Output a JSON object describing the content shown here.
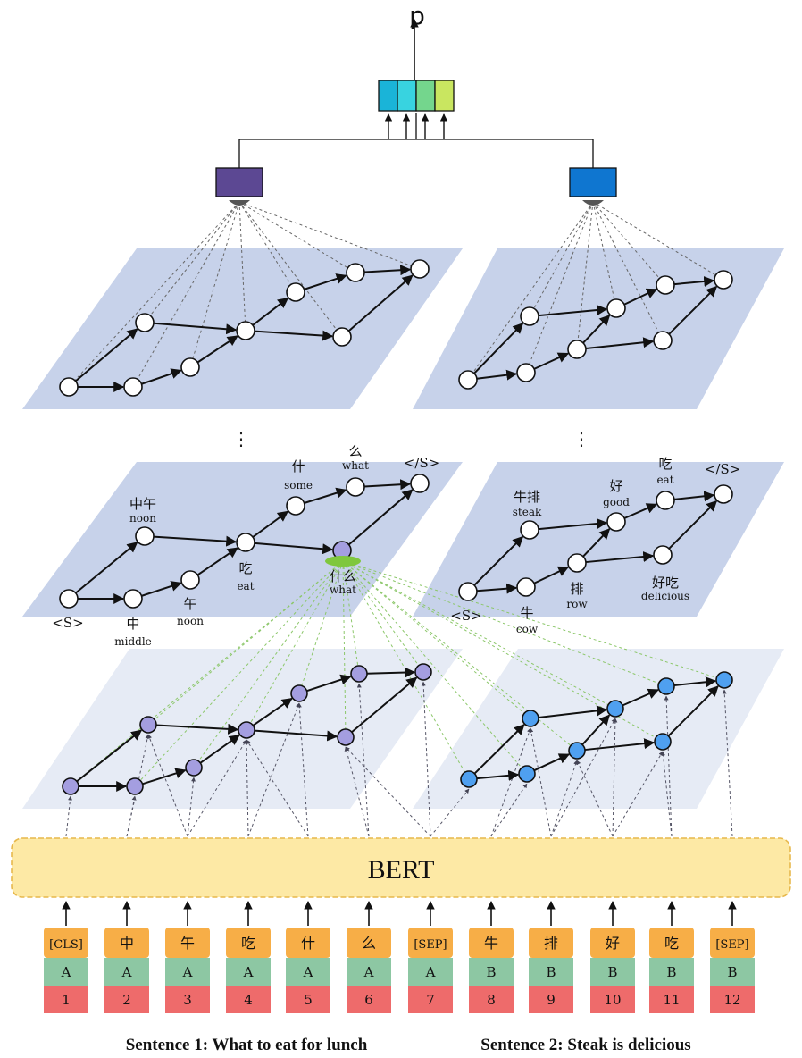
{
  "output_label": "p",
  "dots": "⋮",
  "bert_label": "BERT",
  "tokens": [
    {
      "tok": "[CLS]",
      "seg": "A",
      "pos": "1"
    },
    {
      "tok": "中",
      "seg": "A",
      "pos": "2"
    },
    {
      "tok": "午",
      "seg": "A",
      "pos": "3"
    },
    {
      "tok": "吃",
      "seg": "A",
      "pos": "4"
    },
    {
      "tok": "什",
      "seg": "A",
      "pos": "5"
    },
    {
      "tok": "么",
      "seg": "A",
      "pos": "6"
    },
    {
      "tok": "[SEP]",
      "seg": "A",
      "pos": "7"
    },
    {
      "tok": "牛",
      "seg": "B",
      "pos": "8"
    },
    {
      "tok": "排",
      "seg": "B",
      "pos": "9"
    },
    {
      "tok": "好",
      "seg": "B",
      "pos": "10"
    },
    {
      "tok": "吃",
      "seg": "B",
      "pos": "11"
    },
    {
      "tok": "[SEP]",
      "seg": "B",
      "pos": "12"
    }
  ],
  "lattice1_labels": [
    {
      "zh": "<S>",
      "en": ""
    },
    {
      "zh": "中午",
      "en": "noon"
    },
    {
      "zh": "中",
      "en": "middle"
    },
    {
      "zh": "午",
      "en": "noon"
    },
    {
      "zh": "吃",
      "en": "eat"
    },
    {
      "zh": "什",
      "en": "some"
    },
    {
      "zh": "什么",
      "en": "what"
    },
    {
      "zh": "么",
      "en": "what"
    },
    {
      "zh": "</S>",
      "en": ""
    }
  ],
  "lattice2_labels": [
    {
      "zh": "<S>",
      "en": ""
    },
    {
      "zh": "牛排",
      "en": "steak"
    },
    {
      "zh": "牛",
      "en": "cow"
    },
    {
      "zh": "排",
      "en": "row"
    },
    {
      "zh": "好",
      "en": "good"
    },
    {
      "zh": "好吃",
      "en": "delicious"
    },
    {
      "zh": "吃",
      "en": "eat"
    },
    {
      "zh": "</S>",
      "en": ""
    }
  ],
  "captions": {
    "s1": "Sentence 1: What to eat for lunch",
    "s2": "Sentence 2: Steak is delicious"
  },
  "colors": {
    "plane_dark": "#c7d2ea",
    "plane_light": "#e6ebf5",
    "bert_fill": "#fde9a5",
    "bert_border": "#e7b84c",
    "token_orange": "#f7ae47",
    "token_green": "#8dc7a3",
    "token_red": "#ee6b6b",
    "pool_left": "#5c4893",
    "pool_right": "#0f76d0",
    "node_purple": "#a49ee0",
    "node_blue": "#4fa0f0",
    "out_cells": [
      "#1ab4d8",
      "#38d3e0",
      "#74d68d",
      "#c9e660"
    ]
  }
}
